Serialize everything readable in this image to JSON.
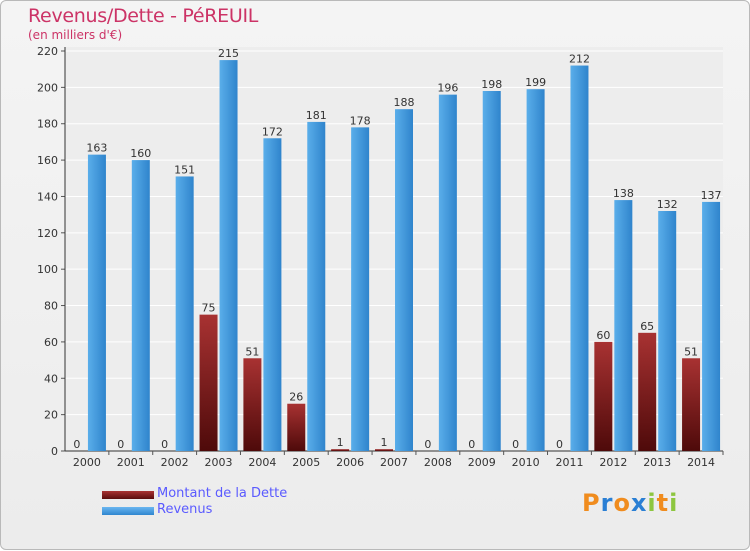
{
  "chart_data": {
    "type": "bar",
    "title": "Revenus/Dette - PéREUIL",
    "subtitle": "(en milliers d'€)",
    "categories": [
      "2000",
      "2001",
      "2002",
      "2003",
      "2004",
      "2005",
      "2006",
      "2007",
      "2008",
      "2009",
      "2010",
      "2011",
      "2012",
      "2013",
      "2014"
    ],
    "series": [
      {
        "name": "Montant de la Dette",
        "color": "#7a1a1a",
        "values": [
          0,
          0,
          0,
          75,
          51,
          26,
          1,
          1,
          0,
          0,
          0,
          0,
          60,
          65,
          51
        ]
      },
      {
        "name": "Revenus",
        "color": "#4a9fe0",
        "values": [
          163,
          160,
          151,
          215,
          172,
          181,
          178,
          188,
          196,
          198,
          199,
          212,
          138,
          132,
          137
        ]
      }
    ],
    "yticks": [
      0,
      20,
      40,
      60,
      80,
      100,
      120,
      140,
      160,
      180,
      200,
      220
    ],
    "ylim": [
      0,
      220
    ],
    "grid": true,
    "legend": "bottom-left"
  },
  "logo": {
    "text": "Proxiti",
    "letters": [
      "P",
      "r",
      "o",
      "x",
      "i",
      "t",
      "i"
    ],
    "colors": [
      "#f08c1e",
      "#2a7fd4",
      "#f08c1e",
      "#2a7fd4",
      "#8dc63f",
      "#f08c1e",
      "#8dc63f"
    ]
  }
}
